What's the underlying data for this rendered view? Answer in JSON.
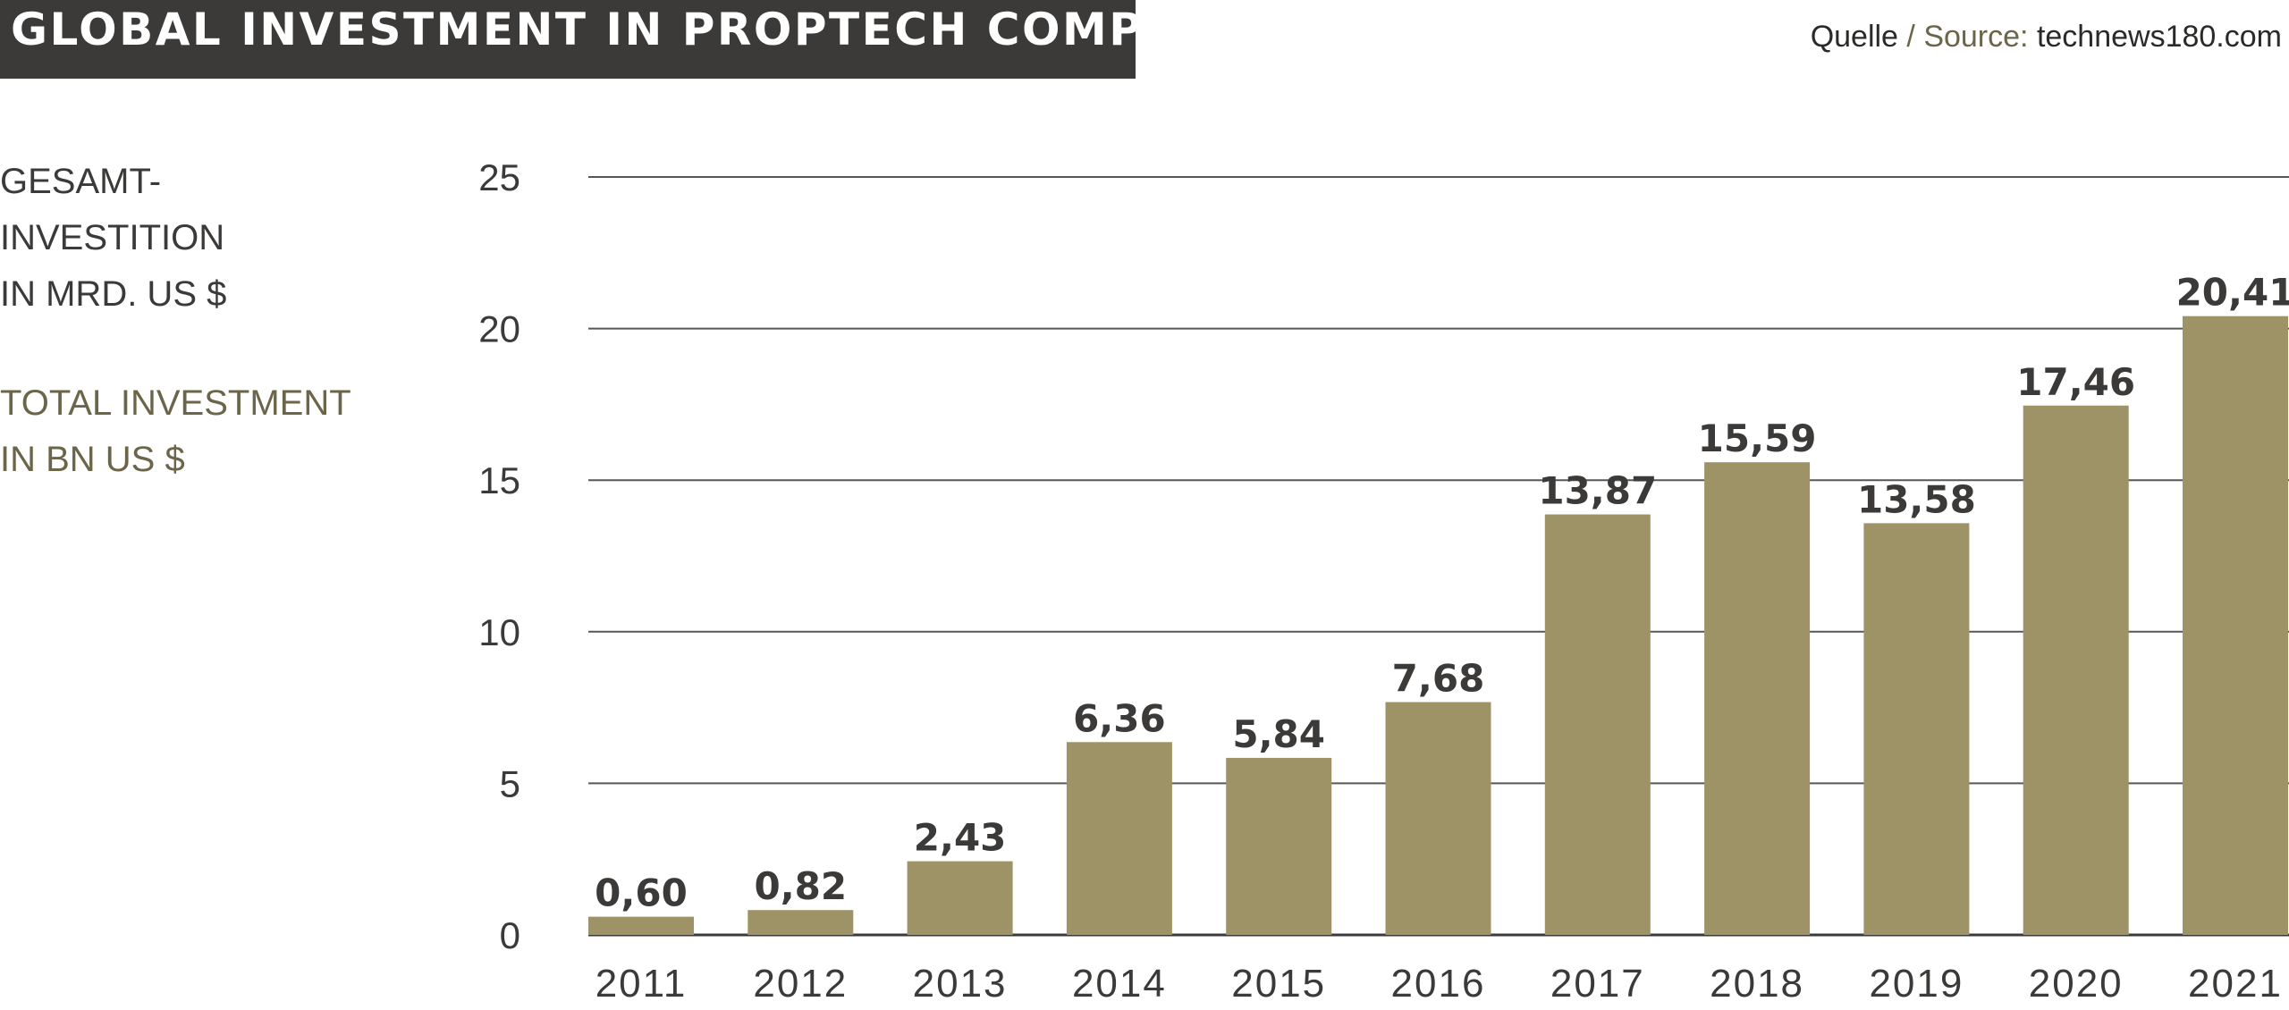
{
  "header": {
    "title": "GLOBAL INVESTMENT IN PROPTECH COMPANIES",
    "source_prefix": "Quelle",
    "source_sep": " / ",
    "source_label": "Source:",
    "source_value": " technews180.com"
  },
  "axis_label": {
    "de": [
      "GESAMT-",
      "INVESTITION",
      "IN MRD. US $"
    ],
    "en": [
      "TOTAL  INVESTMENT",
      "IN BN US $"
    ]
  },
  "colors": {
    "bar": "#9e9366",
    "text_dark": "#3b3a38",
    "accent_olive": "#6b6549",
    "gridline": "#3b3a38"
  },
  "chart_data": {
    "type": "bar",
    "categories": [
      "2011",
      "2012",
      "2013",
      "2014",
      "2015",
      "2016",
      "2017",
      "2018",
      "2019",
      "2020",
      "2021"
    ],
    "values": [
      0.6,
      0.82,
      2.43,
      6.36,
      5.84,
      7.68,
      13.87,
      15.59,
      13.58,
      17.46,
      20.41
    ],
    "value_labels": [
      "0,60",
      "0,82",
      "2,43",
      "6,36",
      "5,84",
      "7,68",
      "13,87",
      "15,59",
      "13,58",
      "17,46",
      "20,41"
    ],
    "yticks": [
      0,
      5,
      10,
      15,
      20,
      25
    ],
    "ylim": [
      0,
      25
    ],
    "grid": true
  }
}
